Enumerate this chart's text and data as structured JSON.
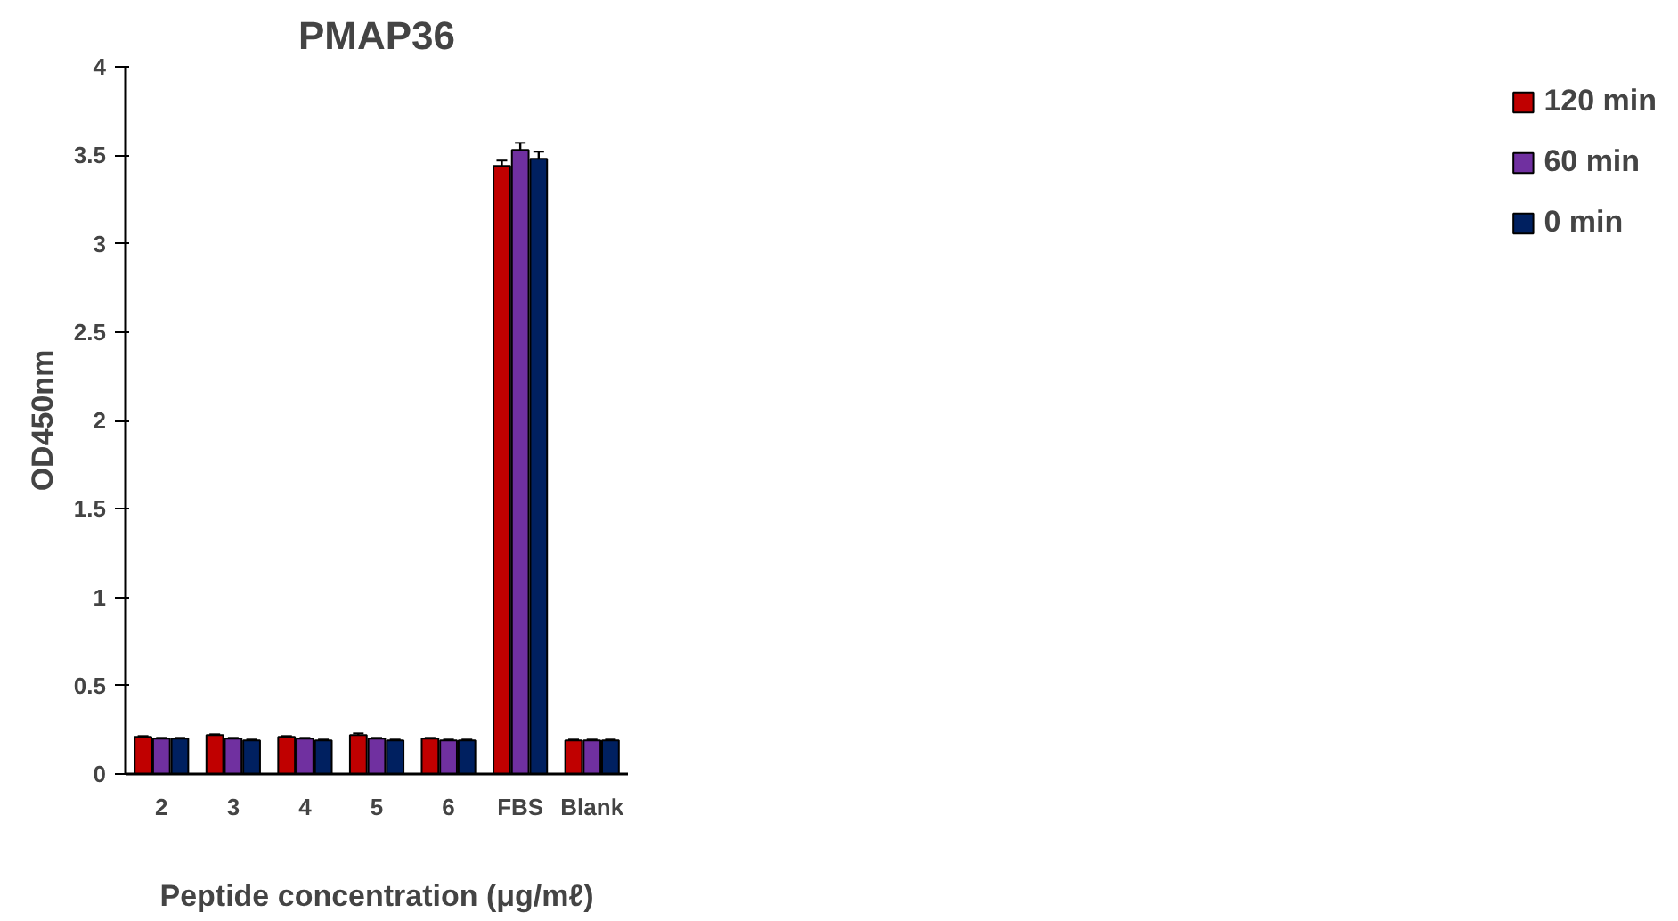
{
  "chart_data": {
    "type": "bar",
    "title": "PMAP36",
    "xlabel": "Peptide concentration (μg/mℓ)",
    "ylabel": "OD450nm",
    "categories": [
      "2",
      "3",
      "4",
      "5",
      "6",
      "FBS",
      "Blank"
    ],
    "series": [
      {
        "name": "120 min",
        "color": "#c00000",
        "values": [
          0.21,
          0.22,
          0.21,
          0.22,
          0.2,
          3.44,
          0.19
        ],
        "errors": [
          0.005,
          0.005,
          0.005,
          0.01,
          0.005,
          0.03,
          0.005
        ]
      },
      {
        "name": "60 min",
        "color": "#7030a0",
        "values": [
          0.2,
          0.2,
          0.2,
          0.2,
          0.19,
          3.53,
          0.19
        ],
        "errors": [
          0.005,
          0.005,
          0.005,
          0.005,
          0.005,
          0.04,
          0.005
        ]
      },
      {
        "name": "0 min",
        "color": "#002060",
        "values": [
          0.2,
          0.19,
          0.19,
          0.19,
          0.19,
          3.48,
          0.19
        ],
        "errors": [
          0.005,
          0.005,
          0.005,
          0.005,
          0.005,
          0.04,
          0.005
        ]
      }
    ],
    "ylim": [
      0,
      4
    ],
    "yticks": [
      0,
      0.5,
      1,
      1.5,
      2,
      2.5,
      3,
      3.5,
      4
    ],
    "grid": false,
    "legend": "right"
  }
}
